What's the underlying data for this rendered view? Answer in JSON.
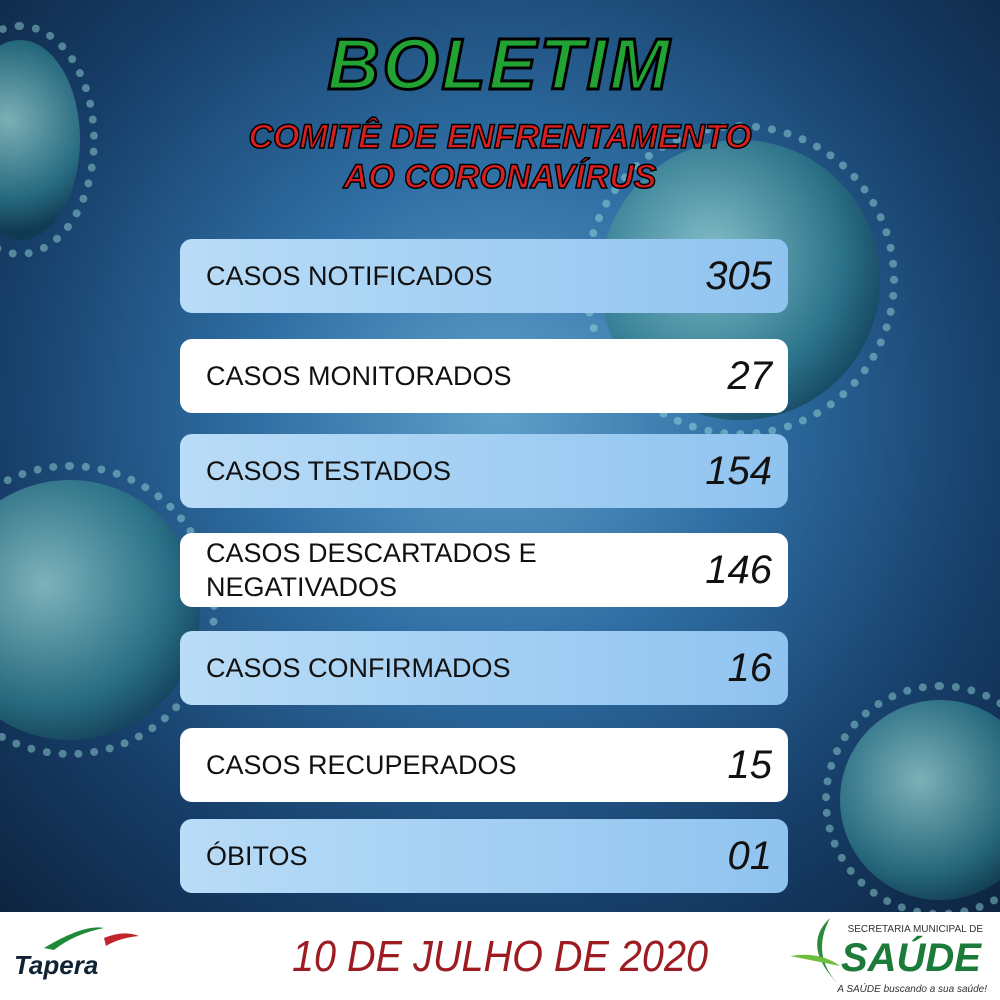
{
  "header": {
    "title": "BOLETIM",
    "subtitle_line1": "COMITÊ DE ENFRENTAMENTO",
    "subtitle_line2": "AO CORONAVÍRUS"
  },
  "stats": [
    {
      "label": "CASOS NOTIFICADOS",
      "value": "305"
    },
    {
      "label": "CASOS MONITORADOS",
      "value": "27"
    },
    {
      "label": "CASOS TESTADOS",
      "value": "154"
    },
    {
      "label": "CASOS DESCARTADOS E NEGATIVADOS",
      "value": "146"
    },
    {
      "label": "CASOS CONFIRMADOS",
      "value": "16"
    },
    {
      "label": "CASOS RECUPERADOS",
      "value": "15"
    },
    {
      "label": "ÓBITOS",
      "value": "01"
    }
  ],
  "footer": {
    "date": "10 DE JULHO DE 2020",
    "left_logo": "Tapera",
    "right_logo_top": "SECRETARIA MUNICIPAL DE",
    "right_logo_main": "SAÚDE",
    "right_logo_tagline": "A SAÚDE buscando a sua saúde!"
  }
}
